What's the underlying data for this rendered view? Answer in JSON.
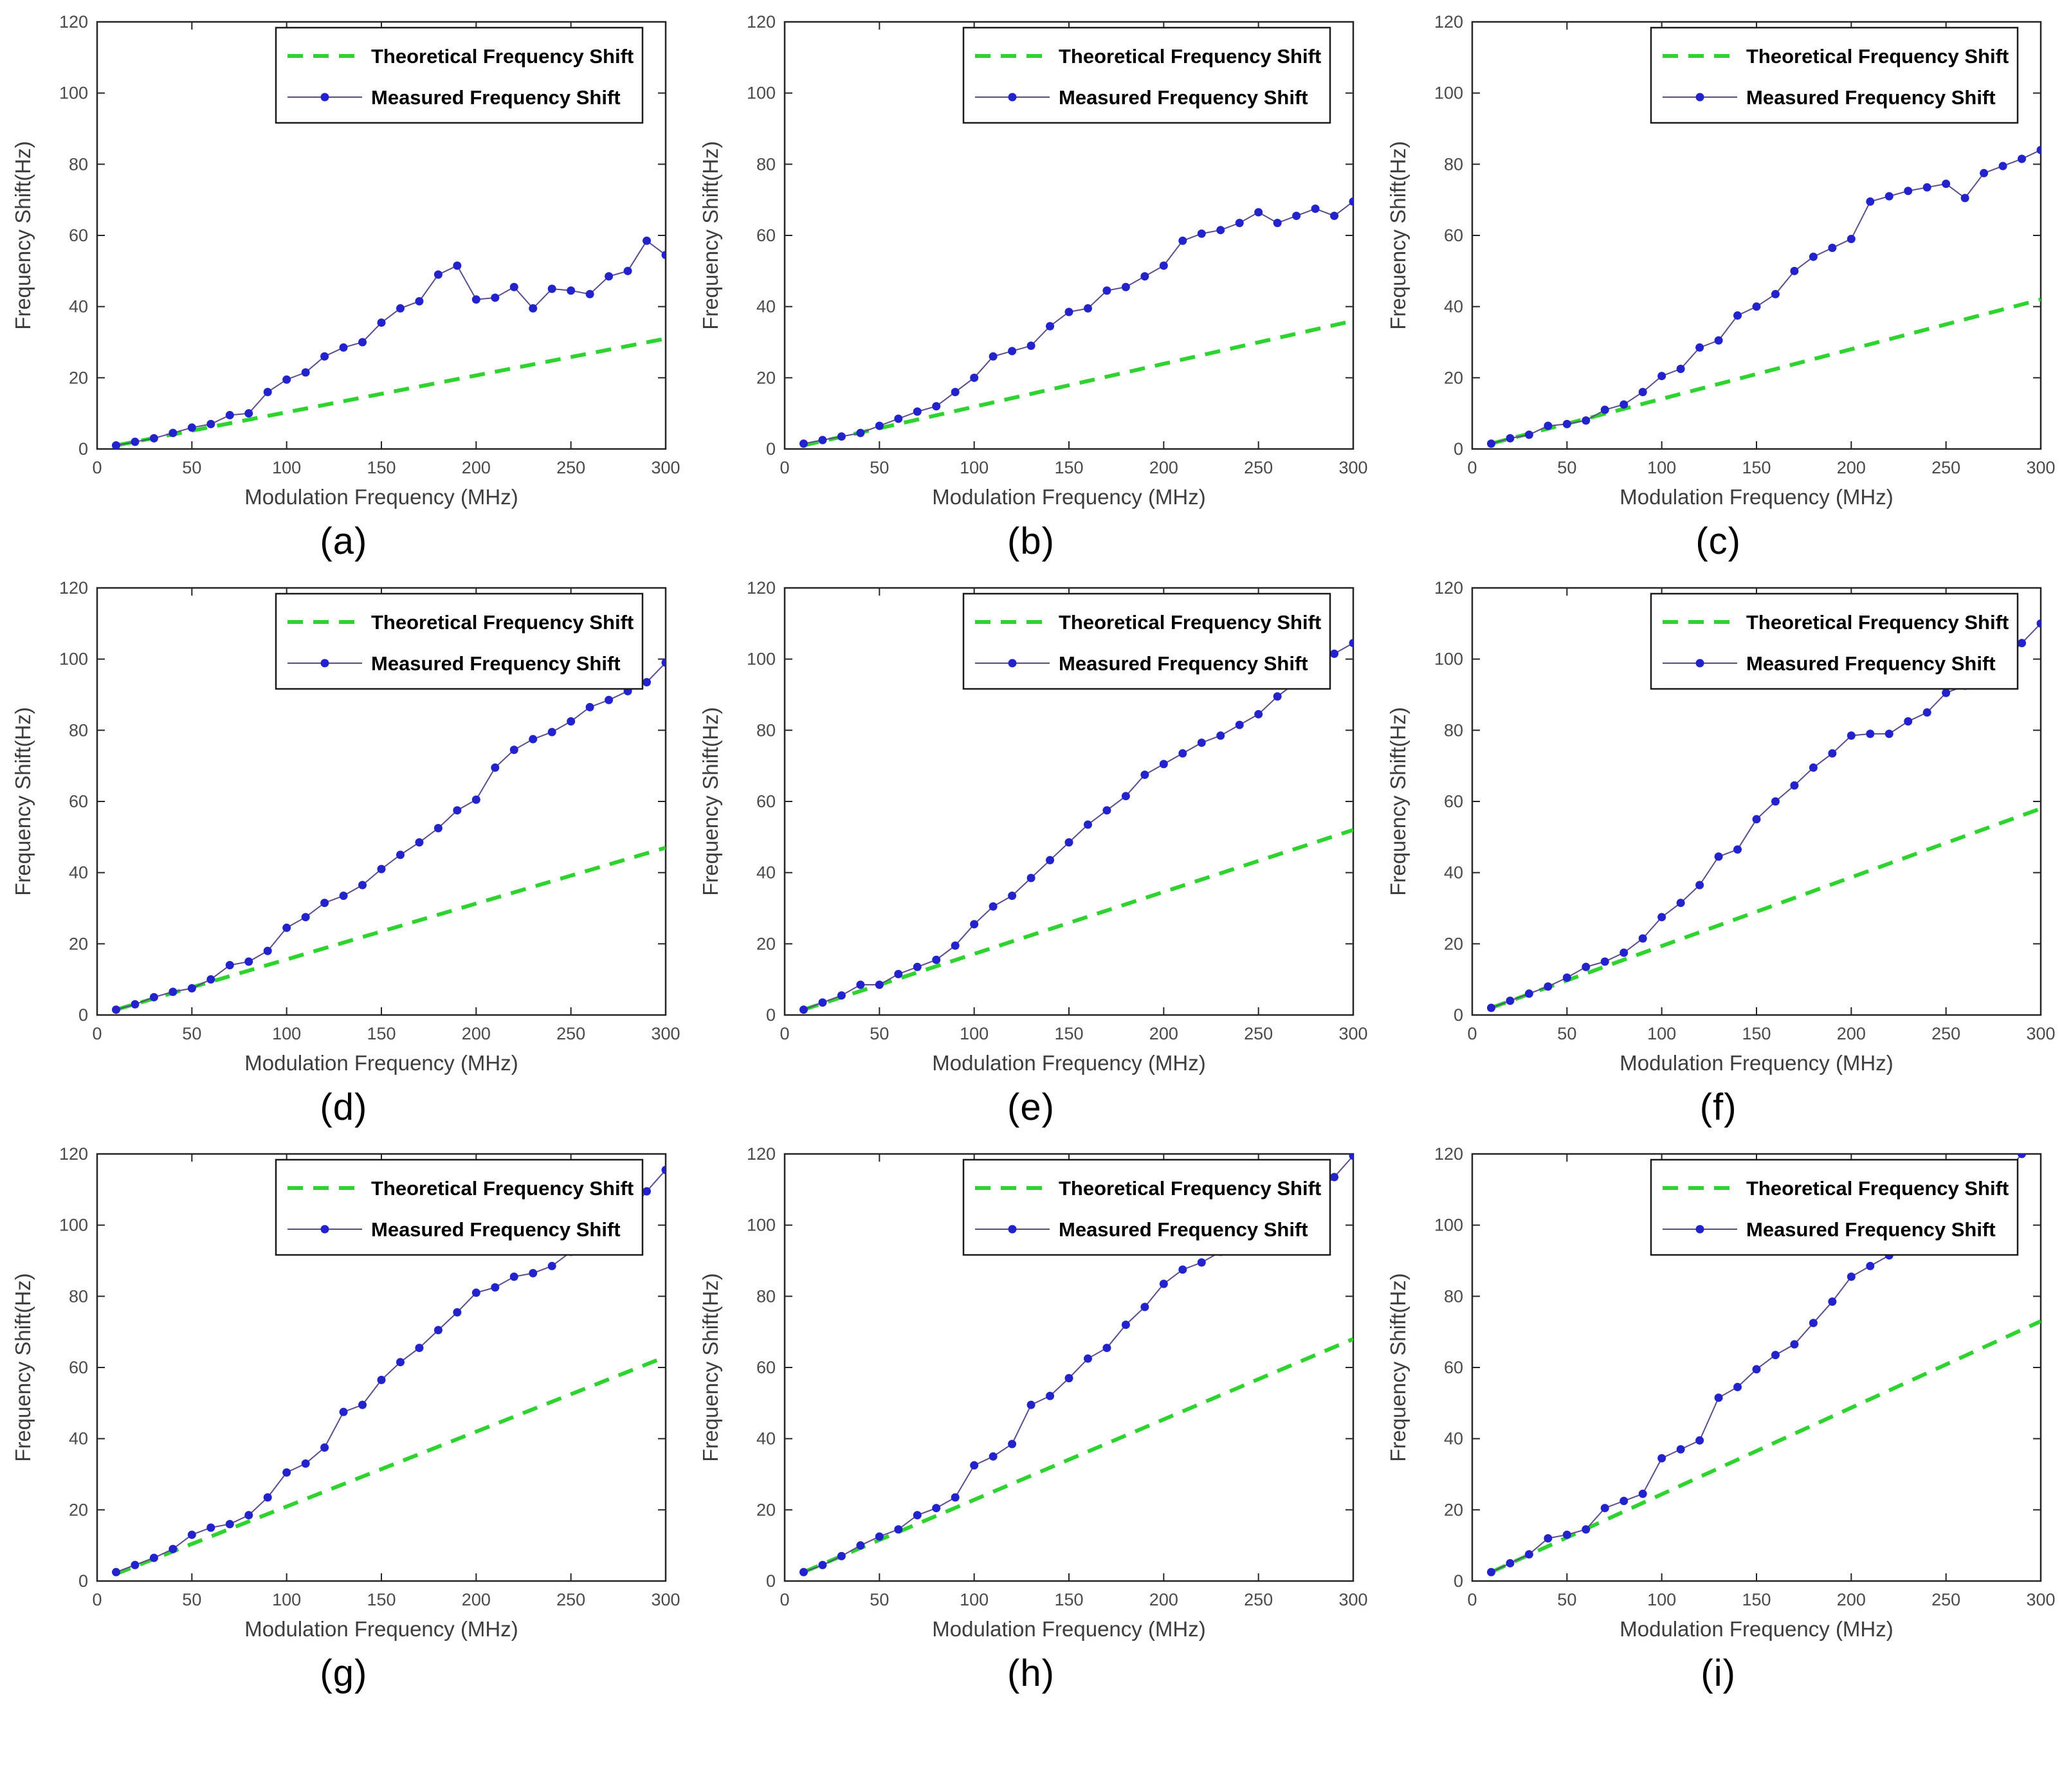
{
  "page": {
    "background": "#ffffff",
    "layout": "3x3 grid of subplots"
  },
  "colors": {
    "theoretical_line": "#2fd32f",
    "measured_line": "#5c4b8a",
    "measured_marker": "#2323cd",
    "axis": "#262626",
    "tick_label": "#4a4a4a",
    "axis_label": "#3d3d3d",
    "legend_text": "#000000",
    "legend_border": "#1a1a1a",
    "legend_background": "#ffffff"
  },
  "chart_data": [
    {
      "type": "line",
      "caption": "(a)",
      "xlabel": "Modulation Frequency (MHz)",
      "ylabel": "Frequency Shift(Hz)",
      "xlim": [
        0,
        300
      ],
      "ylim": [
        0,
        120
      ],
      "xticks": [
        0,
        50,
        100,
        150,
        200,
        250,
        300
      ],
      "yticks": [
        0,
        20,
        40,
        60,
        80,
        100,
        120
      ],
      "legend_position": "top-right",
      "x": [
        10,
        20,
        30,
        40,
        50,
        60,
        70,
        80,
        90,
        100,
        110,
        120,
        130,
        140,
        150,
        160,
        170,
        180,
        190,
        200,
        210,
        220,
        230,
        240,
        250,
        260,
        270,
        280,
        290,
        300
      ],
      "series": [
        {
          "name": "Theoretical Frequency Shift",
          "style": "dashed",
          "color": "#2fd32f",
          "x": [
            10,
            300
          ],
          "values": [
            1,
            31
          ]
        },
        {
          "name": "Measured Frequency Shift",
          "style": "line+marker",
          "line_color": "#5c4b8a",
          "marker_color": "#2323cd",
          "values": [
            1,
            2,
            3,
            4.5,
            6,
            7,
            9.5,
            10,
            16,
            19.5,
            21.5,
            26,
            28.5,
            30,
            35.5,
            39.5,
            41.5,
            49,
            51.5,
            42,
            42.5,
            45.5,
            39.5,
            45,
            44.5,
            43.5,
            48.5,
            50,
            58.5,
            54.5
          ]
        }
      ]
    },
    {
      "type": "line",
      "caption": "(b)",
      "xlabel": "Modulation Frequency (MHz)",
      "ylabel": "Frequency Shift(Hz)",
      "xlim": [
        0,
        300
      ],
      "ylim": [
        0,
        120
      ],
      "xticks": [
        0,
        50,
        100,
        150,
        200,
        250,
        300
      ],
      "yticks": [
        0,
        20,
        40,
        60,
        80,
        100,
        120
      ],
      "legend_position": "top-right",
      "x": [
        10,
        20,
        30,
        40,
        50,
        60,
        70,
        80,
        90,
        100,
        110,
        120,
        130,
        140,
        150,
        160,
        170,
        180,
        190,
        200,
        210,
        220,
        230,
        240,
        250,
        260,
        270,
        280,
        290,
        300
      ],
      "series": [
        {
          "name": "Theoretical Frequency Shift",
          "style": "dashed",
          "color": "#2fd32f",
          "x": [
            10,
            300
          ],
          "values": [
            1,
            36
          ]
        },
        {
          "name": "Measured Frequency Shift",
          "style": "line+marker",
          "line_color": "#5c4b8a",
          "marker_color": "#2323cd",
          "values": [
            1.5,
            2.5,
            3.5,
            4.5,
            6.5,
            8.5,
            10.5,
            12,
            16,
            20,
            26,
            27.5,
            29,
            34.5,
            38.5,
            39.5,
            44.5,
            45.5,
            48.5,
            51.5,
            58.5,
            60.5,
            61.5,
            63.5,
            66.5,
            63.5,
            65.5,
            67.5,
            65.5,
            69.5
          ]
        }
      ]
    },
    {
      "type": "line",
      "caption": "(c)",
      "xlabel": "Modulation Frequency (MHz)",
      "ylabel": "Frequency Shift(Hz)",
      "xlim": [
        0,
        300
      ],
      "ylim": [
        0,
        120
      ],
      "xticks": [
        0,
        50,
        100,
        150,
        200,
        250,
        300
      ],
      "yticks": [
        0,
        20,
        40,
        60,
        80,
        100,
        120
      ],
      "legend_position": "top-right",
      "x": [
        10,
        20,
        30,
        40,
        50,
        60,
        70,
        80,
        90,
        100,
        110,
        120,
        130,
        140,
        150,
        160,
        170,
        180,
        190,
        200,
        210,
        220,
        230,
        240,
        250,
        260,
        270,
        280,
        290,
        300
      ],
      "series": [
        {
          "name": "Theoretical Frequency Shift",
          "style": "dashed",
          "color": "#2fd32f",
          "x": [
            10,
            300
          ],
          "values": [
            1.5,
            42
          ]
        },
        {
          "name": "Measured Frequency Shift",
          "style": "line+marker",
          "line_color": "#5c4b8a",
          "marker_color": "#2323cd",
          "values": [
            1.5,
            3,
            4,
            6.5,
            7,
            8,
            11,
            12.5,
            16,
            20.5,
            22.5,
            28.5,
            30.5,
            37.5,
            40,
            43.5,
            50,
            54,
            56.5,
            59,
            69.5,
            71,
            72.5,
            73.5,
            74.5,
            70.5,
            77.5,
            79.5,
            81.5,
            84
          ]
        }
      ]
    },
    {
      "type": "line",
      "caption": "(d)",
      "xlabel": "Modulation Frequency (MHz)",
      "ylabel": "Frequency Shift(Hz)",
      "xlim": [
        0,
        300
      ],
      "ylim": [
        0,
        120
      ],
      "xticks": [
        0,
        50,
        100,
        150,
        200,
        250,
        300
      ],
      "yticks": [
        0,
        20,
        40,
        60,
        80,
        100,
        120
      ],
      "legend_position": "top-right",
      "x": [
        10,
        20,
        30,
        40,
        50,
        60,
        70,
        80,
        90,
        100,
        110,
        120,
        130,
        140,
        150,
        160,
        170,
        180,
        190,
        200,
        210,
        220,
        230,
        240,
        250,
        260,
        270,
        280,
        290,
        300
      ],
      "series": [
        {
          "name": "Theoretical Frequency Shift",
          "style": "dashed",
          "color": "#2fd32f",
          "x": [
            10,
            300
          ],
          "values": [
            1.5,
            47
          ]
        },
        {
          "name": "Measured Frequency Shift",
          "style": "line+marker",
          "line_color": "#5c4b8a",
          "marker_color": "#2323cd",
          "values": [
            1.5,
            3,
            5,
            6.5,
            7.5,
            10,
            14,
            15,
            18,
            24.5,
            27.5,
            31.5,
            33.5,
            36.5,
            41,
            45,
            48.5,
            52.5,
            57.5,
            60.5,
            69.5,
            74.5,
            77.5,
            79.5,
            82.5,
            86.5,
            88.5,
            91,
            93.5,
            99
          ]
        }
      ]
    },
    {
      "type": "line",
      "caption": "(e)",
      "xlabel": "Modulation Frequency (MHz)",
      "ylabel": "Frequency Shift(Hz)",
      "xlim": [
        0,
        300
      ],
      "ylim": [
        0,
        120
      ],
      "xticks": [
        0,
        50,
        100,
        150,
        200,
        250,
        300
      ],
      "yticks": [
        0,
        20,
        40,
        60,
        80,
        100,
        120
      ],
      "legend_position": "top-right",
      "x": [
        10,
        20,
        30,
        40,
        50,
        60,
        70,
        80,
        90,
        100,
        110,
        120,
        130,
        140,
        150,
        160,
        170,
        180,
        190,
        200,
        210,
        220,
        230,
        240,
        250,
        260,
        270,
        280,
        290,
        300
      ],
      "series": [
        {
          "name": "Theoretical Frequency Shift",
          "style": "dashed",
          "color": "#2fd32f",
          "x": [
            10,
            300
          ],
          "values": [
            1.5,
            52
          ]
        },
        {
          "name": "Measured Frequency Shift",
          "style": "line+marker",
          "line_color": "#5c4b8a",
          "marker_color": "#2323cd",
          "values": [
            1.5,
            3.5,
            5.5,
            8.5,
            8.5,
            11.5,
            13.5,
            15.5,
            19.5,
            25.5,
            30.5,
            33.5,
            38.5,
            43.5,
            48.5,
            53.5,
            57.5,
            61.5,
            67.5,
            70.5,
            73.5,
            76.5,
            78.5,
            81.5,
            84.5,
            89.5,
            93.5,
            99,
            101.5,
            104.5
          ]
        }
      ]
    },
    {
      "type": "line",
      "caption": "(f)",
      "xlabel": "Modulation Frequency (MHz)",
      "ylabel": "Frequency Shift(Hz)",
      "xlim": [
        0,
        300
      ],
      "ylim": [
        0,
        120
      ],
      "xticks": [
        0,
        50,
        100,
        150,
        200,
        250,
        300
      ],
      "yticks": [
        0,
        20,
        40,
        60,
        80,
        100,
        120
      ],
      "legend_position": "top-right",
      "x": [
        10,
        20,
        30,
        40,
        50,
        60,
        70,
        80,
        90,
        100,
        110,
        120,
        130,
        140,
        150,
        160,
        170,
        180,
        190,
        200,
        210,
        220,
        230,
        240,
        250,
        260,
        270,
        280,
        290,
        300
      ],
      "series": [
        {
          "name": "Theoretical Frequency Shift",
          "style": "dashed",
          "color": "#2fd32f",
          "x": [
            10,
            300
          ],
          "values": [
            2,
            58
          ]
        },
        {
          "name": "Measured Frequency Shift",
          "style": "line+marker",
          "line_color": "#5c4b8a",
          "marker_color": "#2323cd",
          "values": [
            2,
            4,
            6,
            8,
            10.5,
            13.5,
            15,
            17.5,
            21.5,
            27.5,
            31.5,
            36.5,
            44.5,
            46.5,
            55,
            60,
            64.5,
            69.5,
            73.5,
            78.5,
            79,
            79,
            82.5,
            85,
            90.5,
            92.5,
            95.5,
            99.5,
            104.5,
            110
          ]
        }
      ]
    },
    {
      "type": "line",
      "caption": "(g)",
      "xlabel": "Modulation Frequency (MHz)",
      "ylabel": "Frequency Shift(Hz)",
      "xlim": [
        0,
        300
      ],
      "ylim": [
        0,
        120
      ],
      "xticks": [
        0,
        50,
        100,
        150,
        200,
        250,
        300
      ],
      "yticks": [
        0,
        20,
        40,
        60,
        80,
        100,
        120
      ],
      "legend_position": "top-right",
      "x": [
        10,
        20,
        30,
        40,
        50,
        60,
        70,
        80,
        90,
        100,
        110,
        120,
        130,
        140,
        150,
        160,
        170,
        180,
        190,
        200,
        210,
        220,
        230,
        240,
        250,
        260,
        270,
        280,
        290,
        300
      ],
      "series": [
        {
          "name": "Theoretical Frequency Shift",
          "style": "dashed",
          "color": "#2fd32f",
          "x": [
            10,
            300
          ],
          "values": [
            2,
            63
          ]
        },
        {
          "name": "Measured Frequency Shift",
          "style": "line+marker",
          "line_color": "#5c4b8a",
          "marker_color": "#2323cd",
          "values": [
            2.5,
            4.5,
            6.5,
            9,
            13,
            15,
            16,
            18.5,
            23.5,
            30.5,
            33,
            37.5,
            47.5,
            49.5,
            56.5,
            61.5,
            65.5,
            70.5,
            75.5,
            81,
            82.5,
            85.5,
            86.5,
            88.5,
            92.5,
            94.5,
            98.5,
            103,
            109.5,
            115.5
          ]
        }
      ]
    },
    {
      "type": "line",
      "caption": "(h)",
      "xlabel": "Modulation Frequency (MHz)",
      "ylabel": "Frequency Shift(Hz)",
      "xlim": [
        0,
        300
      ],
      "ylim": [
        0,
        120
      ],
      "xticks": [
        0,
        50,
        100,
        150,
        200,
        250,
        300
      ],
      "yticks": [
        0,
        20,
        40,
        60,
        80,
        100,
        120
      ],
      "legend_position": "top-right",
      "x": [
        10,
        20,
        30,
        40,
        50,
        60,
        70,
        80,
        90,
        100,
        110,
        120,
        130,
        140,
        150,
        160,
        170,
        180,
        190,
        200,
        210,
        220,
        230,
        240,
        250,
        260,
        270,
        280,
        290,
        300
      ],
      "series": [
        {
          "name": "Theoretical Frequency Shift",
          "style": "dashed",
          "color": "#2fd32f",
          "x": [
            10,
            300
          ],
          "values": [
            2.5,
            68
          ]
        },
        {
          "name": "Measured Frequency Shift",
          "style": "line+marker",
          "line_color": "#5c4b8a",
          "marker_color": "#2323cd",
          "values": [
            2.5,
            4.5,
            7,
            10,
            12.5,
            14.5,
            18.5,
            20.5,
            23.5,
            32.5,
            35,
            38.5,
            49.5,
            52,
            57,
            62.5,
            65.5,
            72,
            77,
            83.5,
            87.5,
            89.5,
            92.5,
            93,
            97,
            99.5,
            104,
            108.5,
            113.5,
            119.5
          ]
        }
      ]
    },
    {
      "type": "line",
      "caption": "(i)",
      "xlabel": "Modulation Frequency (MHz)",
      "ylabel": "Frequency Shift(Hz)",
      "xlim": [
        0,
        300
      ],
      "ylim": [
        0,
        120
      ],
      "xticks": [
        0,
        50,
        100,
        150,
        200,
        250,
        300
      ],
      "yticks": [
        0,
        20,
        40,
        60,
        80,
        100,
        120
      ],
      "legend_position": "top-right",
      "x": [
        10,
        20,
        30,
        40,
        50,
        60,
        70,
        80,
        90,
        100,
        110,
        120,
        130,
        140,
        150,
        160,
        170,
        180,
        190,
        200,
        210,
        220,
        230,
        240,
        250,
        260,
        270,
        280,
        290,
        300
      ],
      "series": [
        {
          "name": "Theoretical Frequency Shift",
          "style": "dashed",
          "color": "#2fd32f",
          "x": [
            10,
            300
          ],
          "values": [
            2.5,
            73
          ]
        },
        {
          "name": "Measured Frequency Shift",
          "style": "line+marker",
          "line_color": "#5c4b8a",
          "marker_color": "#2323cd",
          "values": [
            2.5,
            5,
            7.5,
            12,
            13,
            14.5,
            20.5,
            22.5,
            24.5,
            34.5,
            37,
            39.5,
            51.5,
            54.5,
            59.5,
            63.5,
            66.5,
            72.5,
            78.5,
            85.5,
            88.5,
            91.5,
            95,
            99,
            99.5,
            104,
            108.5,
            113.5,
            120,
            124
          ]
        }
      ]
    }
  ]
}
